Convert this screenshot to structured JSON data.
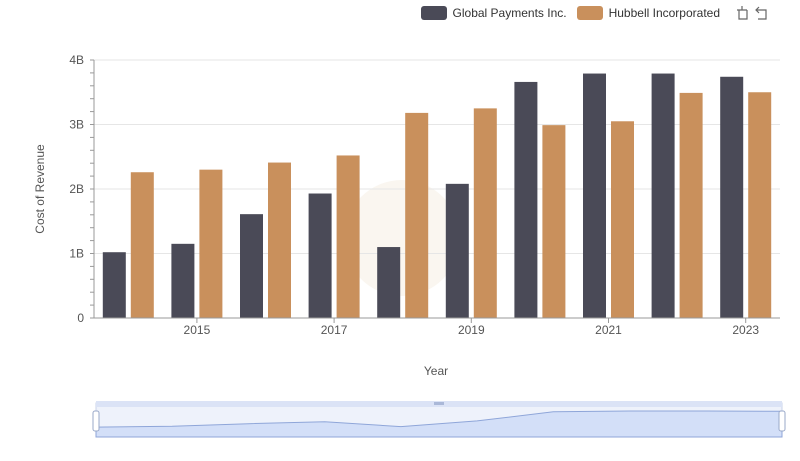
{
  "legend": {
    "items": [
      {
        "label": "Global Payments Inc.",
        "color": "#4a4a57"
      },
      {
        "label": "Hubbell Incorporated",
        "color": "#c9905c"
      }
    ],
    "tools": [
      "restore-icon",
      "zoom-reset-icon"
    ]
  },
  "chart_data": {
    "type": "bar",
    "title": "",
    "xlabel": "Year",
    "ylabel": "Cost of Revenue",
    "ylim": [
      0,
      4000000000
    ],
    "y_ticks": [
      "0",
      "1B",
      "2B",
      "3B",
      "4B"
    ],
    "categories": [
      "2014",
      "2015",
      "2016",
      "2017",
      "2018",
      "2019",
      "2020",
      "2021",
      "2022",
      "2023"
    ],
    "x_tick_labels": [
      "2015",
      "2017",
      "2019",
      "2021",
      "2023"
    ],
    "series": [
      {
        "name": "Global Payments Inc.",
        "color": "#4a4a57",
        "values": [
          1020000000,
          1150000000,
          1610000000,
          1930000000,
          1100000000,
          2080000000,
          3660000000,
          3790000000,
          3790000000,
          3740000000
        ]
      },
      {
        "name": "Hubbell Incorporated",
        "color": "#c9905c",
        "values": [
          2260000000,
          2300000000,
          2410000000,
          2520000000,
          3180000000,
          3250000000,
          2990000000,
          3050000000,
          3490000000,
          3500000000
        ]
      }
    ],
    "grid": true,
    "legend_position": "top-right",
    "data_zoom": true
  }
}
